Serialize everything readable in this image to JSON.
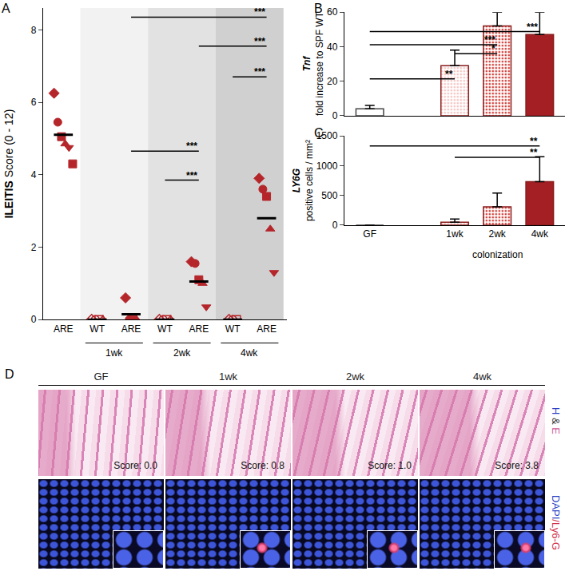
{
  "chart_data": [
    {
      "panel_label": "A",
      "type": "scatter",
      "ylabel": "ILEITIS Score (0 - 12)",
      "ylim": [
        0,
        8.6
      ],
      "yticks": [
        0,
        2,
        4,
        6,
        8
      ],
      "categories": [
        "ARE",
        "WT",
        "ARE",
        "WT",
        "ARE",
        "WT",
        "ARE"
      ],
      "groups": [
        {
          "label": "1wk",
          "from": 1,
          "to": 2
        },
        {
          "label": "2wk",
          "from": 3,
          "to": 4
        },
        {
          "label": "4wk",
          "from": 5,
          "to": 6
        }
      ],
      "color": "#b5262b",
      "points": [
        {
          "values": [
            6.25,
            5.45,
            5.05,
            4.85,
            4.75,
            4.3
          ],
          "mean": 5.1,
          "marker": "filled"
        },
        {
          "values": [
            0,
            0,
            0,
            0
          ],
          "mean": 0,
          "marker": "open"
        },
        {
          "values": [
            0.6,
            0,
            0,
            0
          ],
          "mean": 0.15,
          "marker": "filled"
        },
        {
          "values": [
            0,
            0,
            0,
            0
          ],
          "mean": 0,
          "marker": "open"
        },
        {
          "values": [
            1.6,
            1.55,
            1.1,
            1.0,
            0.35
          ],
          "mean": 1.05,
          "marker": "filled"
        },
        {
          "values": [
            0,
            0,
            0
          ],
          "mean": 0,
          "marker": "open"
        },
        {
          "values": [
            3.9,
            3.6,
            3.4,
            2.5,
            1.3
          ],
          "mean": 2.8,
          "marker": "filled"
        }
      ],
      "brackets": [
        {
          "from": 2,
          "to": 6,
          "y": 8.35,
          "label": "***"
        },
        {
          "from": 4,
          "to": 6,
          "y": 7.55,
          "label": "***"
        },
        {
          "from": 5,
          "to": 6,
          "y": 6.7,
          "label": "***"
        },
        {
          "from": 2,
          "to": 4,
          "y": 4.65,
          "label": "***"
        },
        {
          "from": 3,
          "to": 4,
          "y": 3.85,
          "label": "***"
        }
      ]
    },
    {
      "panel_label": "B",
      "type": "bar",
      "ylabel": [
        "Tnf",
        "fold increase to SPF WT"
      ],
      "ylim": [
        0,
        60
      ],
      "yticks": [
        0,
        20,
        40,
        60
      ],
      "tick_labels": "y",
      "categories": [
        "GF",
        null,
        "1wk",
        "2wk",
        "4wk"
      ],
      "values": [
        4,
        null,
        29,
        52,
        47
      ],
      "errors": [
        2,
        null,
        9,
        8,
        13
      ],
      "colors": [
        "#ffffff",
        null,
        "#f4c4c1",
        "#d23b35",
        "#a31f24"
      ],
      "brackets": [
        {
          "from": 0,
          "to": 4,
          "y": 48.7,
          "label": "***"
        },
        {
          "from": 0,
          "to": 3,
          "y": 41.1,
          "label": "***"
        },
        {
          "from": 2,
          "to": 3,
          "y": 35.9,
          "label": "*"
        },
        {
          "from": 0,
          "to": 2,
          "y": 21.3,
          "label": "**"
        }
      ]
    },
    {
      "panel_label": "C",
      "type": "bar",
      "ylabel": [
        "LY6G",
        "positive cells / mm²"
      ],
      "xlabel": "colonization",
      "ylim": [
        0,
        1500
      ],
      "yticks": [
        0,
        500,
        1000,
        1500
      ],
      "categories": [
        "GF",
        null,
        "1wk",
        "2wk",
        "4wk"
      ],
      "values": [
        0,
        null,
        50,
        310,
        730
      ],
      "errors": [
        null,
        null,
        55,
        230,
        420
      ],
      "colors": [
        "#ffffff",
        null,
        "#f4c4c1",
        "#d23b35",
        "#a31f24"
      ],
      "brackets": [
        {
          "from": 0,
          "to": 4,
          "y": 1330,
          "label": "**"
        },
        {
          "from": 2,
          "to": 4,
          "y": 1140,
          "label": "**"
        }
      ]
    }
  ],
  "panel_d": {
    "panel_label": "D",
    "columns": [
      "GF",
      "1wk",
      "2wk",
      "4wk"
    ],
    "scores": [
      "Score: 0.0",
      "Score: 0.8",
      "Score: 1.0",
      "Score: 3.8"
    ],
    "rows": [
      "H & E",
      "DAPI/Ly6-G"
    ]
  }
}
